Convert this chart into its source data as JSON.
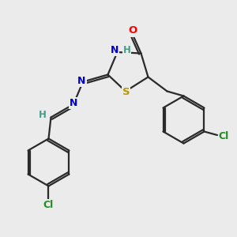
{
  "bg_color": "#ebebeb",
  "bond_color": "#2a2a2a",
  "atom_colors": {
    "O": "#ff0000",
    "N": "#0000cc",
    "S": "#b8960c",
    "Cl": "#228B22",
    "H_label": "#4a9a8a",
    "C": "#2a2a2a"
  },
  "lw": 1.6
}
